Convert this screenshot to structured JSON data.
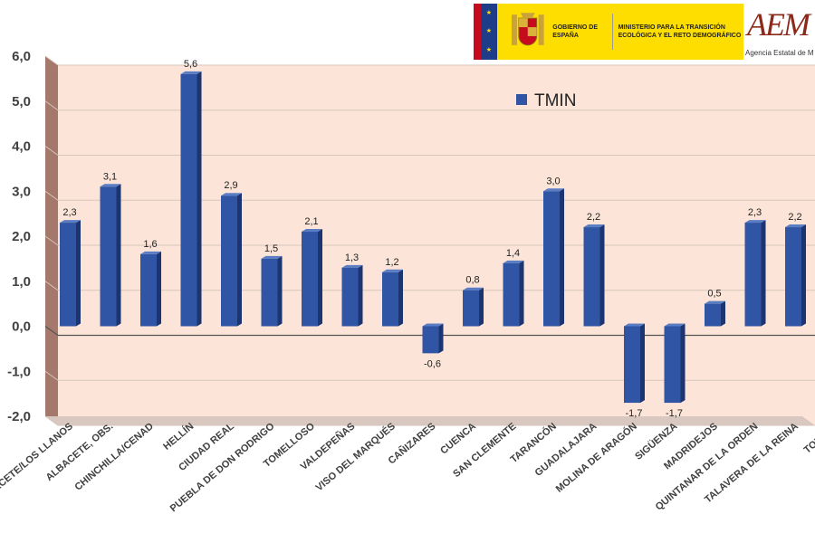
{
  "header": {
    "gov_label": "GOBIERNO DE ESPAÑA",
    "ministry_label": "MINISTERIO PARA LA TRANSICIÓN ECOLÓGICA Y EL RETO DEMOGRÁFICO",
    "aemet_mark": "AEM",
    "aemet_sub": "Agencia Estatal de M"
  },
  "colors": {
    "bar": "#2f55a4",
    "bar_dark": "#1c3570",
    "bar_top": "#5a7dc4",
    "plot_bg": "#fce5d8",
    "side_wall": "#a4786a",
    "grid": "#d7c5bc",
    "gov_yellow": "#fedd00"
  },
  "chart_data": {
    "type": "bar",
    "title": "",
    "xlabel": "",
    "ylabel": "",
    "ylim": [
      -2.0,
      6.0
    ],
    "yticks": [
      "-2,0",
      "-1,0",
      "0,0",
      "1,0",
      "2,0",
      "3,0",
      "4,0",
      "5,0",
      "6,0"
    ],
    "legend": "top-right",
    "grid": true,
    "categories": [
      "ALBACETE/LOS LLANOS",
      "ALBACETE, OBS.",
      "CHINCHILLA/CENAD",
      "HELLÍN",
      "CIUDAD REAL",
      "PUEBLA DE DON RODRIGO",
      "TOMELLOSO",
      "VALDEPEÑAS",
      "VISO DEL MARQUÉS",
      "CAÑIZARES",
      "CUENCA",
      "SAN CLEMENTE",
      "TARANCÓN",
      "GUADALAJARA",
      "MOLINA DE ARAGÓN",
      "SIGÜENZA",
      "MADRIDEJOS",
      "QUINTANAR DE LA ORDEN",
      "TALAVERA DE LA REINA",
      "TOLEDO"
    ],
    "series": [
      {
        "name": "TMIN",
        "values": [
          2.3,
          3.1,
          1.6,
          5.6,
          2.9,
          1.5,
          2.1,
          1.3,
          1.2,
          -0.6,
          0.8,
          1.4,
          3.0,
          2.2,
          -1.7,
          -1.7,
          0.5,
          2.3,
          2.2,
          null
        ],
        "labels": [
          "2,3",
          "3,1",
          "1,6",
          "5,6",
          "2,9",
          "1,5",
          "2,1",
          "1,3",
          "1,2",
          "-0,6",
          "0,8",
          "1,4",
          "3,0",
          "2,2",
          "-1,7",
          "-1,7",
          "0,5",
          "2,3",
          "2,2",
          ""
        ]
      }
    ]
  }
}
